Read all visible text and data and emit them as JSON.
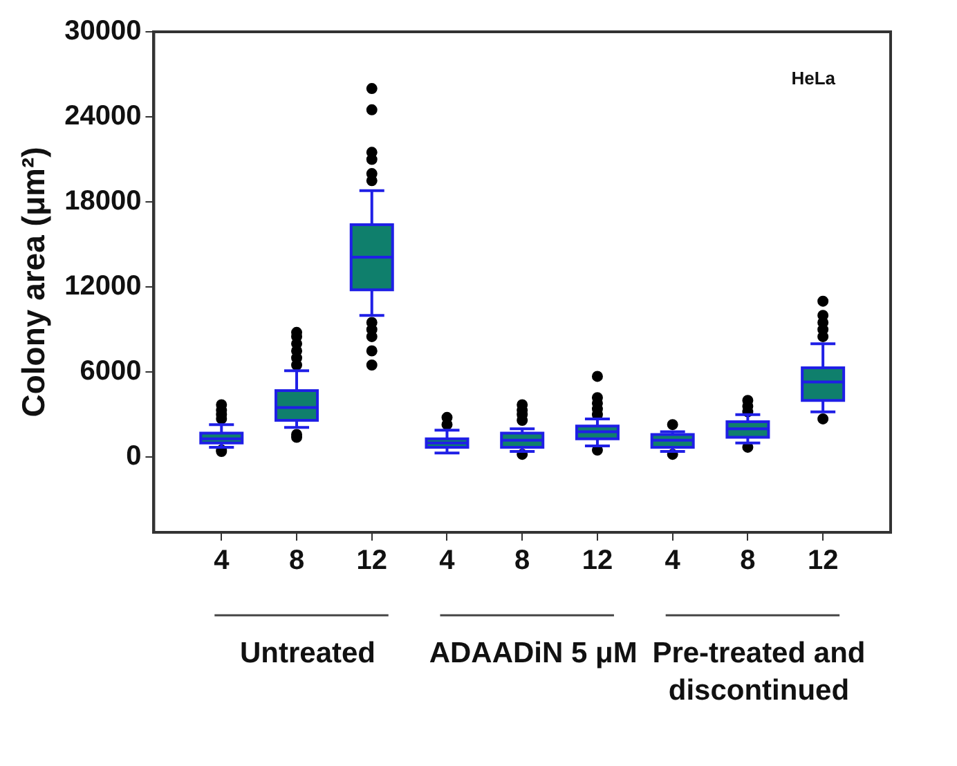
{
  "chart_data": {
    "type": "box",
    "ylabel": "Colony area (μm²)",
    "categories": [
      "4",
      "8",
      "12",
      "4",
      "8",
      "12",
      "4",
      "8",
      "12"
    ],
    "color": "#0f7f6c",
    "boxes": [
      {
        "low": 700,
        "q1": 1000,
        "median": 1300,
        "q3": 1700,
        "high": 2300,
        "outliers": [
          500,
          400,
          2700,
          3000,
          3300,
          3700
        ]
      },
      {
        "low": 2100,
        "q1": 2600,
        "median": 3500,
        "q3": 4700,
        "high": 6100,
        "outliers": [
          1600,
          1400,
          6500,
          7000,
          7500,
          8000,
          8500,
          8800
        ]
      },
      {
        "low": 10000,
        "q1": 11800,
        "median": 14100,
        "q3": 16400,
        "high": 18800,
        "outliers": [
          9500,
          9000,
          8500,
          7500,
          6500,
          19500,
          20000,
          21000,
          21500,
          24500,
          26000
        ]
      },
      {
        "low": 300,
        "q1": 700,
        "median": 1000,
        "q3": 1300,
        "high": 1900,
        "outliers": [
          2300,
          2800
        ]
      },
      {
        "low": 400,
        "q1": 700,
        "median": 1200,
        "q3": 1700,
        "high": 2000,
        "outliers": [
          200,
          2600,
          3000,
          3300,
          3700
        ]
      },
      {
        "low": 800,
        "q1": 1300,
        "median": 1800,
        "q3": 2200,
        "high": 2700,
        "outliers": [
          500,
          3000,
          3400,
          3800,
          4200,
          5700
        ]
      },
      {
        "low": 400,
        "q1": 700,
        "median": 1200,
        "q3": 1600,
        "high": 1800,
        "outliers": [
          200,
          2300
        ]
      },
      {
        "low": 1000,
        "q1": 1400,
        "median": 2000,
        "q3": 2500,
        "high": 3000,
        "outliers": [
          700,
          3200,
          3600,
          4000
        ]
      },
      {
        "low": 3200,
        "q1": 4000,
        "median": 5300,
        "q3": 6300,
        "high": 8000,
        "outliers": [
          2700,
          8500,
          9000,
          9500,
          10000,
          11000
        ]
      }
    ],
    "ylim": [
      -5300,
      30000
    ],
    "yticks": [
      0,
      6000,
      12000,
      18000,
      24000,
      30000
    ],
    "grid": false,
    "legend": false,
    "annotations": [
      "HeLa",
      "Untreated",
      "ADAADiN 5 μM",
      "Pre-treated and discontinued"
    ]
  }
}
